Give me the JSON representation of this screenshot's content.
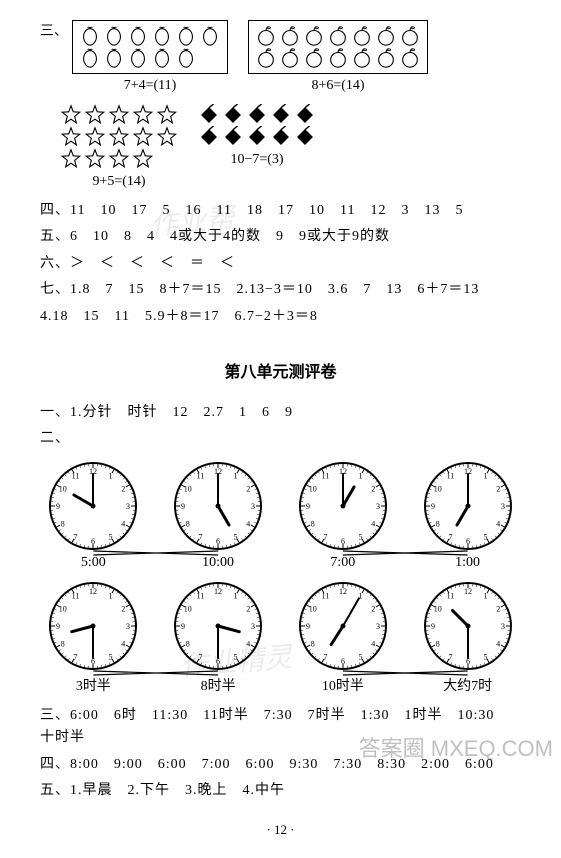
{
  "section3": {
    "label": "三、",
    "panel_a": {
      "expr": "7+4=(11)"
    },
    "panel_b": {
      "expr": "8+6=(14)"
    },
    "panel_c": {
      "expr": "9+5=(14)"
    },
    "panel_d": {
      "expr": "10−7=(3)"
    },
    "shapes": {
      "peach_fill": "#ffffff",
      "peach_stroke": "#000000",
      "apple_fill": "#ffffff",
      "apple_stroke": "#000000",
      "star_fill": "#ffffff",
      "star_stroke": "#000000",
      "diamond_fill": "#000000",
      "diamond_stroke": "#000000"
    }
  },
  "section4": {
    "line": "四、11　10　17　5　16　11　18　17　10　11　12　3　13　5"
  },
  "section5": {
    "line": "五、6　10　8　4　4或大于4的数　9　9或大于9的数"
  },
  "section6": {
    "line": "六、＞　＜　＜　＜　＝　＜"
  },
  "section7": {
    "line1": "七、1.8　7　15　8＋7＝15　2.13−3＝10　3.6　7　13　6＋7＝13",
    "line2": "4.18　15　11　5.9＋8＝17　6.7−2＋3＝8"
  },
  "unit8": {
    "title": "第八单元测评卷",
    "line1": "一、1.分针　时针　12　2.7　1　6　9",
    "label2": "二、",
    "clocks_row1": [
      {
        "hour": 10,
        "minute": 0,
        "label": "5:00"
      },
      {
        "hour": 5,
        "minute": 0,
        "label": "10:00"
      },
      {
        "hour": 1,
        "minute": 0,
        "label": "7:00"
      },
      {
        "hour": 7,
        "minute": 0,
        "label": "1:00"
      }
    ],
    "clocks_row2": [
      {
        "hour": 8,
        "minute": 30,
        "expr": "3时半"
      },
      {
        "hour": 3,
        "minute": 30,
        "expr": "8时半"
      },
      {
        "hour": 7,
        "minute": 5,
        "expr": "10时半"
      },
      {
        "hour": 10,
        "minute": 30,
        "expr": "大约7时"
      }
    ],
    "clock_style": {
      "face_fill": "#ffffff",
      "stroke": "#000000",
      "stroke_width": 2,
      "number_fontsize": 8,
      "hand_color": "#000000"
    },
    "line3": "三、6:00　6时　11:30　11时半　7:30　7时半　1:30　1时半　10:30　十时半"
  },
  "section4b": {
    "line": "四、8:00　9:00　6:00　7:00　6:00　9:30　7:30　8:30　2:00　6:00"
  },
  "section5b": {
    "line": "五、1.早晨　2.下午　3.晚上　4.中午"
  },
  "page": "· 12 ·",
  "watermarks": {
    "w1": "作业帮",
    "w2": "作业精灵"
  },
  "corner": "答案圈\nMXEQ.COM"
}
